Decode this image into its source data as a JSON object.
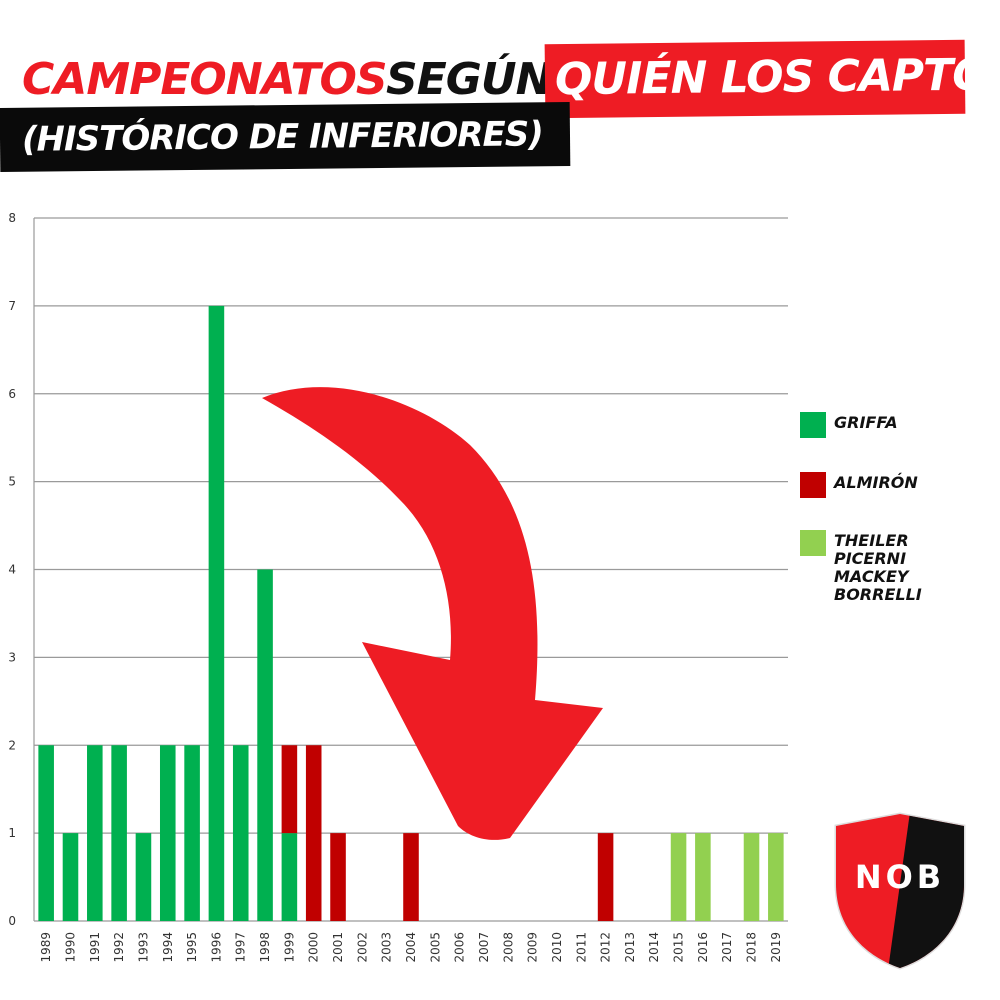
{
  "title": {
    "part1": "CAMPEONATOS",
    "part2": "SEGÚN",
    "part3": "QUIÉN LOS CAPTÓ",
    "subtitle": "(HISTÓRICO DE INFERIORES)"
  },
  "legend": {
    "items": [
      {
        "label_lines": [
          "GRIFFA"
        ],
        "color": "#00b050"
      },
      {
        "label_lines": [
          "ALMIRÓN"
        ],
        "color": "#c00000"
      },
      {
        "label_lines": [
          "THEILER",
          "PICERNI",
          "MACKEY",
          "BORRELLI"
        ],
        "color": "#92d050"
      }
    ]
  },
  "badge": {
    "text": "NOB",
    "colors": [
      "#ee1c24",
      "#111111"
    ]
  },
  "chart_data": {
    "type": "bar",
    "stacked": true,
    "categories": [
      "1989",
      "1990",
      "1991",
      "1992",
      "1993",
      "1994",
      "1995",
      "1996",
      "1997",
      "1998",
      "1999",
      "2000",
      "2001",
      "2002",
      "2003",
      "2004",
      "2005",
      "2006",
      "2007",
      "2008",
      "2009",
      "2010",
      "2011",
      "2012",
      "2013",
      "2014",
      "2015",
      "2016",
      "2017",
      "2018",
      "2019"
    ],
    "series": [
      {
        "name": "GRIFFA",
        "color": "#00b050",
        "values": [
          2,
          1,
          2,
          2,
          1,
          2,
          2,
          7,
          2,
          4,
          1,
          0,
          0,
          0,
          0,
          0,
          0,
          0,
          0,
          0,
          0,
          0,
          0,
          0,
          0,
          0,
          0,
          0,
          0,
          0,
          0
        ]
      },
      {
        "name": "ALMIRÓN",
        "color": "#c00000",
        "values": [
          0,
          0,
          0,
          0,
          0,
          0,
          0,
          0,
          0,
          0,
          1,
          2,
          1,
          0,
          0,
          1,
          0,
          0,
          0,
          0,
          0,
          0,
          0,
          1,
          0,
          0,
          0,
          0,
          0,
          0,
          0
        ]
      },
      {
        "name": "THEILER PICERNI MACKEY BORRELLI",
        "color": "#92d050",
        "values": [
          0,
          0,
          0,
          0,
          0,
          0,
          0,
          0,
          0,
          0,
          0,
          0,
          0,
          0,
          0,
          0,
          0,
          0,
          0,
          0,
          0,
          0,
          0,
          0,
          0,
          0,
          1,
          1,
          0,
          1,
          1
        ]
      }
    ],
    "yticks": [
      "0",
      "1",
      "2",
      "3",
      "4",
      "5",
      "6",
      "7",
      "8"
    ],
    "ylim": [
      0,
      8
    ],
    "grid": true,
    "legend_position": "right",
    "annotation": "red-arrow-down"
  }
}
